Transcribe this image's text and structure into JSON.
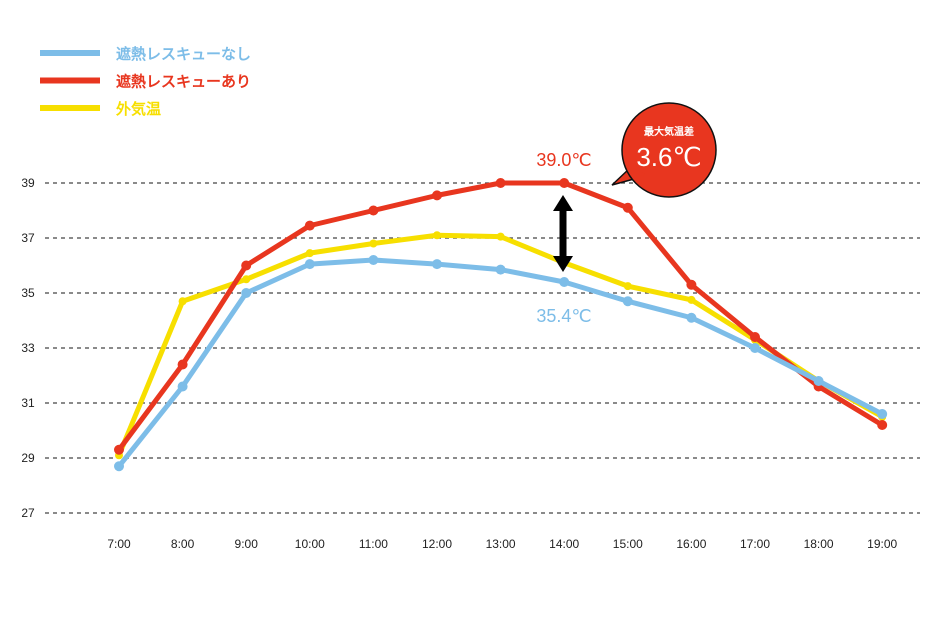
{
  "chart_data": {
    "type": "line",
    "title": "",
    "xlabel": "",
    "ylabel": "",
    "ylim": [
      27,
      39
    ],
    "yticks": [
      27,
      29,
      31,
      33,
      35,
      37,
      39
    ],
    "grid": true,
    "legend_position": "top-left",
    "categories": [
      "7:00",
      "8:00",
      "9:00",
      "10:00",
      "11:00",
      "12:00",
      "13:00",
      "14:00",
      "15:00",
      "16:00",
      "17:00",
      "18:00",
      "19:00"
    ],
    "series": [
      {
        "name": "遮熱レスキューなし",
        "color": "#7dbde8",
        "values": [
          28.7,
          31.6,
          35.0,
          36.05,
          36.2,
          36.05,
          35.85,
          35.4,
          34.7,
          34.1,
          33.0,
          31.8,
          30.6
        ]
      },
      {
        "name": "遮熱レスキューあり",
        "color": "#e8361f",
        "values": [
          29.3,
          32.4,
          36.0,
          37.45,
          38.0,
          38.55,
          39.0,
          39.0,
          38.1,
          35.3,
          33.4,
          31.6,
          30.2
        ]
      },
      {
        "name": "外気温",
        "color": "#f7df00",
        "values": [
          29.1,
          34.7,
          35.5,
          36.45,
          36.8,
          37.1,
          37.05,
          36.1,
          35.25,
          34.75,
          33.3,
          31.8,
          30.5
        ]
      }
    ],
    "annotations": {
      "max_label": "39.0℃",
      "min_label": "35.4℃",
      "bubble_title": "最大気温差",
      "bubble_value": "3.6℃"
    }
  }
}
